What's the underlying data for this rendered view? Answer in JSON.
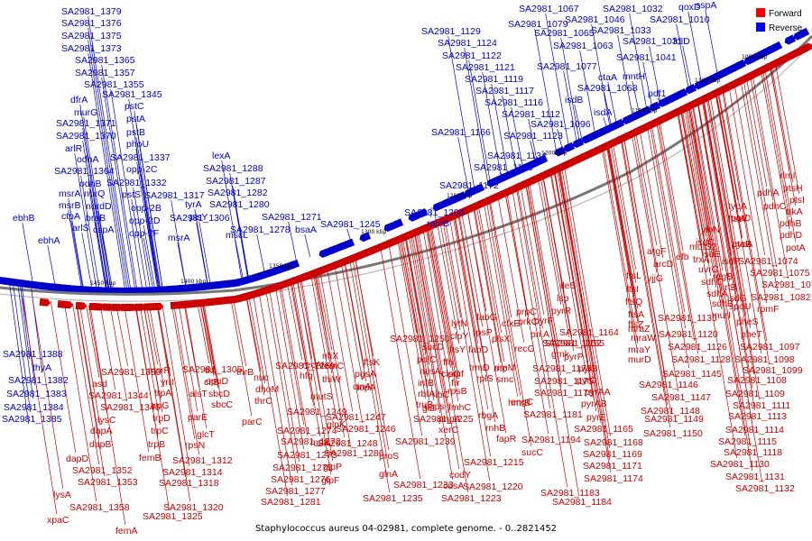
{
  "caption": "Staphylococcus aureus 04-02981, complete genome. - 0..2821452",
  "legend": [
    {
      "label": "Forward",
      "color": "#ff0000"
    },
    {
      "label": "Reverse",
      "color": "#0000ff"
    }
  ],
  "colors": {
    "forward": "#cc0000",
    "reverse": "#0000cc",
    "backbone": "#777777"
  },
  "ticks": [
    "1050 kbp",
    "1100 kbp",
    "1150 kbp",
    "1200 kbp",
    "1250 kbp",
    "1300 kbp",
    "1350 kbp",
    "1400 kbp",
    "1450 kbp"
  ],
  "reverse_genes": [
    "ebhB",
    "ebhA",
    "SA2981_1379",
    "SA2981_1376",
    "SA2981_1375",
    "SA2981_1373",
    "SA2981_1365",
    "SA2981_1357",
    "SA2981_1355",
    "dfrA",
    "murG",
    "SA2981_1371",
    "SA2981_1370",
    "arlR",
    "odhA",
    "SA2981_1364",
    "odhB",
    "norQ",
    "nordD",
    "braB",
    "cspA",
    "ctpA",
    "arlS",
    "msrA",
    "msrB",
    "SA2981_1345",
    "pstC",
    "pstA",
    "pstB",
    "phoU",
    "SA2981_1337",
    "opp-2C",
    "SA2981_1332",
    "pstS",
    "opp-2B",
    "opp-2D",
    "opp-2F",
    "SA2981_1317",
    "tyrA",
    "plsY",
    "SA2981_1306",
    "msrA",
    "lexA",
    "SA2981_1288",
    "SA2981_1287",
    "SA2981_1282",
    "SA2981_1280",
    "SA2981_1278",
    "SA2981_1271",
    "mscL",
    "bsaA",
    "SA2981_1245",
    "SA2981_1200",
    "rpmB",
    "SA2981_1172",
    "SA2981_1129",
    "SA2981_1124",
    "SA2981_1122",
    "SA2981_1121",
    "SA2981_1119",
    "SA2981_1117",
    "SA2981_1116",
    "SA2981_1112",
    "SA2981_1166",
    "SA2981_1096",
    "SA2981_1123",
    "SA2981_1134",
    "SA2981_1153",
    "SA2981_1067",
    "SA2981_1079",
    "SA2981_1065",
    "SA2981_1063",
    "SA2981_1077",
    "SA2981_1068",
    "isdB",
    "isdA",
    "ctaA",
    "mntH",
    "pdf1",
    "SA2981_1032",
    "SA2981_1046",
    "SA2981_1033",
    "SA2981_1031",
    "SA2981_1041",
    "SA2981_1010",
    "qoxD",
    "sspA",
    "folD",
    "SA2981_1388",
    "thyA",
    "SA2981_1382",
    "SA2981_1383",
    "SA2981_1384",
    "SA2981_1385"
  ],
  "forward_genes": [
    "rlmI",
    "ptsH",
    "ptsI",
    "trkA",
    "pdhA",
    "pdhC",
    "pdhB",
    "pdhD",
    "potA",
    "typA",
    "ftsW",
    "potD",
    "pycA",
    "ctaB",
    "ylbN",
    "isdC",
    "isdG",
    "isdF",
    "isdE",
    "srtB",
    "SA2981_1074",
    "SA2981_1075",
    "SA2981_1078",
    "SA2981_1082",
    "mutS2",
    "trxA",
    "uvrC",
    "sdhC",
    "sdhA",
    "sdhB",
    "murI",
    "rdgB",
    "spoU",
    "rpmF",
    "pheS",
    "pheT",
    "efb",
    "argF",
    "arcD",
    "yjjG",
    "SA2981_1135",
    "SA2981_1120",
    "SA2981_1126",
    "SA2981_1128",
    "SA2981_1097",
    "SA2981_1098",
    "SA2981_1099",
    "SA2981_1108",
    "SA2981_1109",
    "SA2981_1111",
    "SA2981_1113",
    "SA2981_1114",
    "SA2981_1115",
    "SA2981_1118",
    "SA2981_1130",
    "SA2981_1131",
    "SA2981_1132",
    "ftsL",
    "ftsI",
    "ftsQ",
    "ftsA",
    "ftsZ",
    "mraZ",
    "mraW",
    "mraY",
    "murD",
    "SA2981_1145",
    "SA2981_1146",
    "SA2981_1147",
    "SA2981_1148",
    "SA2981_1149",
    "SA2981_1150",
    "ileS",
    "lsp",
    "pyrR",
    "pyrF",
    "prpC",
    "cfxE",
    "fabG",
    "plsX",
    "recG",
    "prkC",
    "SA2981_1164",
    "pri A",
    "SA2981_1152",
    "SA2981_1155",
    "gmk",
    "SA2981_1173",
    "SA2981_1175",
    "SA2981_1176",
    "pyrB",
    "pyrP",
    "pyrC",
    "pyrAA",
    "pyrAB",
    "pyrE",
    "SA2981_1165",
    "SA2981_1168",
    "SA2981_1169",
    "SA2981_1171",
    "SA2981_1174",
    "SA2981_1181",
    "SA2981_1183",
    "SA2981_1184",
    "SA2981_1194",
    "fabD",
    "rpsP",
    "rimM",
    "trmD",
    "rnc",
    "smc",
    "hmrB",
    "engC",
    "rplS",
    "rbgA",
    "rnhB",
    "fapR",
    "sucC",
    "codY",
    "cdsA",
    "SA2981_1220",
    "SA2981_1223",
    "SA2981_1225",
    "SA2981_1215",
    "ftsY",
    "ffh",
    "smf",
    "clpY",
    "lytN",
    "sucD",
    "polC",
    "nusA",
    "infB",
    "rbfA",
    "truB",
    "ribC",
    "upps",
    "frr",
    "topA",
    "glnA",
    "SA2981_1233",
    "SA2981_1239",
    "pnpA",
    "xerC",
    "clpQ",
    "rpsB",
    "fmhC",
    "gid",
    "proS",
    "SA2981_1235",
    "SA2981_1250",
    "ftsK",
    "pgsA",
    "cinA",
    "recA",
    "hfq",
    "nfiX",
    "femC",
    "thiW",
    "mutS",
    "mutL",
    "SA2981_1246",
    "SA2981_1247",
    "SA2981_1248",
    "SA2981_1249",
    "SA2981_1274",
    "SA2981_1272",
    "SA2981_1273",
    "SA2981_1275",
    "SA2981_1276",
    "SA2981_1277",
    "SA2981_1281",
    "SA2981_1286",
    "glpP",
    "glpF",
    "glpK",
    "SA2981_1269",
    "nuc",
    "dhoM",
    "thrC",
    "thrB",
    "tkt",
    "citB",
    "sbcD",
    "sbcC",
    "opuD",
    "parE",
    "parC",
    "rpsN",
    "glcT",
    "SA2981_1305",
    "yrrI",
    "msrR",
    "trpA",
    "trpG",
    "trpD",
    "trpC",
    "trpB",
    "femB",
    "alsT",
    "SA2981_1312",
    "SA2981_1314",
    "SA2981_1318",
    "SA2981_1320",
    "SA2981_1325",
    "femA",
    "SA2981_1330",
    "asd",
    "SA2981_1344",
    "SA2981_1346",
    "lysC",
    "dapA",
    "dapB",
    "dapD",
    "SA2981_1352",
    "SA2981_1353",
    "lysA",
    "SA2981_1358",
    "xpaC",
    "SA2981_1360"
  ]
}
